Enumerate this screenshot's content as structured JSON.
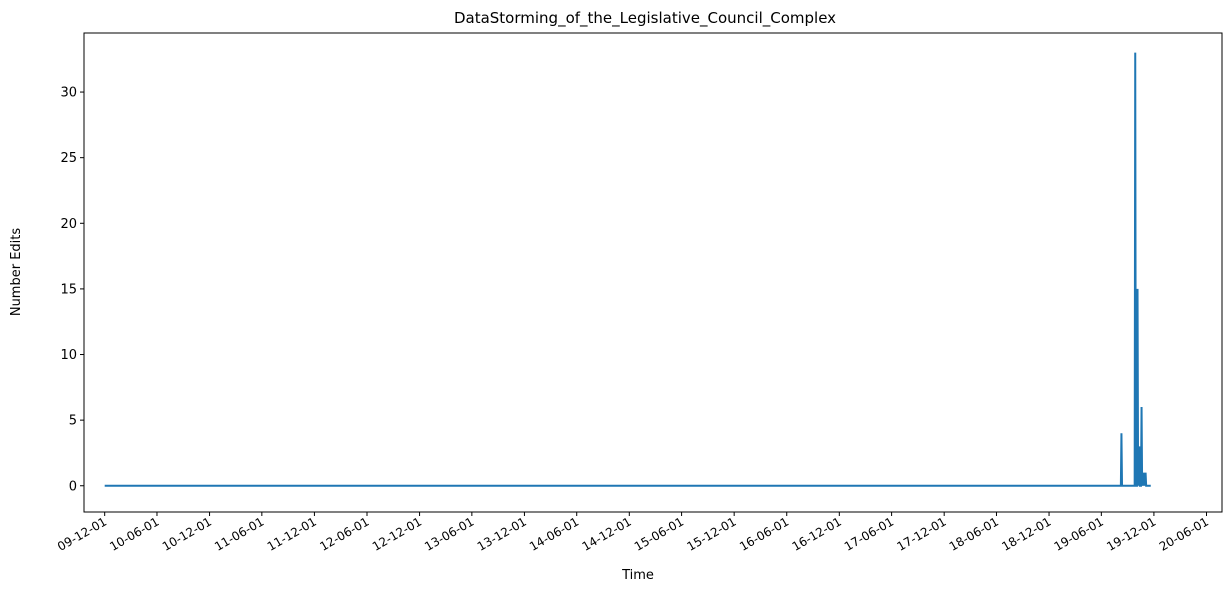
{
  "chart_data": {
    "type": "line",
    "title": "DataStorming_of_the_Legislative_Council_Complex",
    "xlabel": "Time",
    "ylabel": "Number Edits",
    "y_ticks": [
      0,
      5,
      10,
      15,
      20,
      25,
      30
    ],
    "ylim": [
      -2.0,
      34.5
    ],
    "x_tick_labels": [
      "09-12-01",
      "10-06-01",
      "10-12-01",
      "11-06-01",
      "11-12-01",
      "12-06-01",
      "12-12-01",
      "13-06-01",
      "13-12-01",
      "14-06-01",
      "14-12-01",
      "15-06-01",
      "15-12-01",
      "16-06-01",
      "16-12-01",
      "17-06-01",
      "17-12-01",
      "18-06-01",
      "18-12-01",
      "19-06-01",
      "19-12-01",
      "20-06-01"
    ],
    "x_tick_dates": [
      "2009-12-01",
      "2010-06-01",
      "2010-12-01",
      "2011-06-01",
      "2011-12-01",
      "2012-06-01",
      "2012-12-01",
      "2013-06-01",
      "2013-12-01",
      "2014-06-01",
      "2014-12-01",
      "2015-06-01",
      "2015-12-01",
      "2016-06-01",
      "2016-12-01",
      "2017-06-01",
      "2017-12-01",
      "2018-06-01",
      "2018-12-01",
      "2019-06-01",
      "2019-12-01",
      "2020-06-01"
    ],
    "xlim": [
      "2009-09-20",
      "2020-07-25"
    ],
    "grid": false,
    "series": [
      {
        "color": "#1f77b4",
        "points": [
          [
            "2009-12-01",
            0
          ],
          [
            "2019-08-08",
            0
          ],
          [
            "2019-08-10",
            4
          ],
          [
            "2019-08-12",
            0
          ],
          [
            "2019-09-25",
            0
          ],
          [
            "2019-09-27",
            33
          ],
          [
            "2019-09-29",
            0
          ],
          [
            "2019-10-03",
            0
          ],
          [
            "2019-10-05",
            15
          ],
          [
            "2019-10-07",
            0
          ],
          [
            "2019-10-08",
            3
          ],
          [
            "2019-10-10",
            0
          ],
          [
            "2019-10-11",
            3
          ],
          [
            "2019-10-13",
            0
          ],
          [
            "2019-10-17",
            0
          ],
          [
            "2019-10-19",
            6
          ],
          [
            "2019-10-21",
            0
          ],
          [
            "2019-10-24",
            1
          ],
          [
            "2019-10-26",
            0
          ],
          [
            "2019-10-29",
            1
          ],
          [
            "2019-10-31",
            0
          ],
          [
            "2019-11-02",
            1
          ],
          [
            "2019-11-04",
            0
          ],
          [
            "2019-11-20",
            0
          ]
        ]
      }
    ]
  }
}
